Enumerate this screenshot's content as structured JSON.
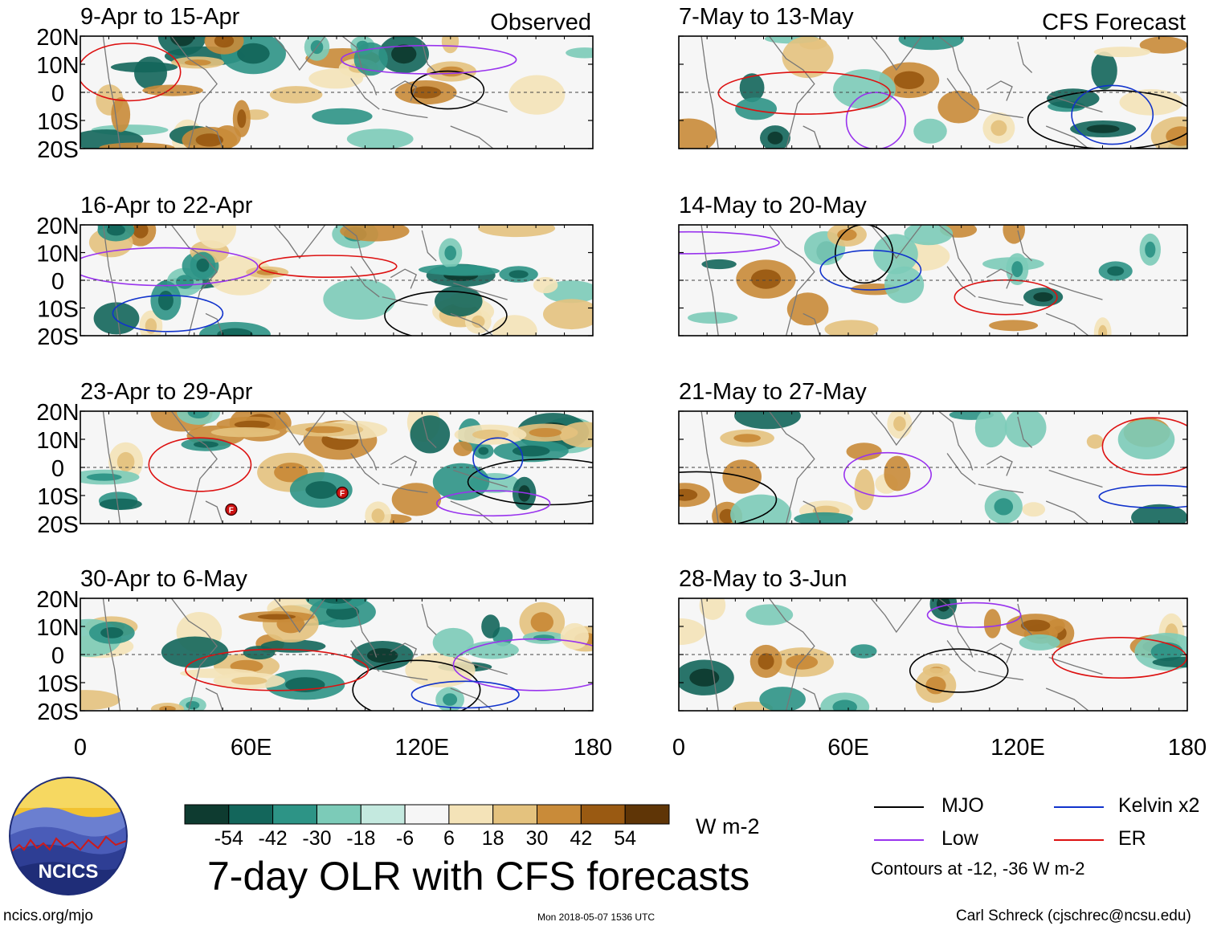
{
  "chart_data": {
    "type": "heatmap",
    "title": "7-day OLR with CFS forecasts",
    "units": "W m-2",
    "observed_label": "Observed",
    "forecast_label": "CFS Forecast",
    "lat_ticks": [
      "20N",
      "10N",
      "0",
      "10S",
      "20S"
    ],
    "lon_ticks": [
      "0",
      "60E",
      "120E",
      "180"
    ],
    "lat_range": [
      -20,
      20
    ],
    "lon_range": [
      0,
      180
    ],
    "observed_panels": [
      {
        "period": "9-Apr to 15-Apr"
      },
      {
        "period": "16-Apr to 22-Apr"
      },
      {
        "period": "23-Apr to 29-Apr"
      },
      {
        "period": "30-Apr to 6-May"
      }
    ],
    "forecast_panels": [
      {
        "period": "7-May to 13-May"
      },
      {
        "period": "14-May to 20-May"
      },
      {
        "period": "21-May to 27-May"
      },
      {
        "period": "28-May to 3-Jun"
      }
    ],
    "colorbar": {
      "labels": [
        "-54",
        "-42",
        "-30",
        "-18",
        "-6",
        "6",
        "18",
        "30",
        "42",
        "54"
      ],
      "colors": [
        "#0e3b30",
        "#13665b",
        "#2d9486",
        "#7ccbb8",
        "#c4e9df",
        "#f6f6f6",
        "#f4e3b8",
        "#e4c27e",
        "#c98b39",
        "#9a5a12",
        "#5f3506"
      ]
    },
    "legend": [
      {
        "name": "MJO",
        "color": "#000000"
      },
      {
        "name": "Kelvin x2",
        "color": "#1133cc"
      },
      {
        "name": "Low",
        "color": "#9933ee"
      },
      {
        "name": "ER",
        "color": "#dd1111"
      }
    ],
    "contour_note": "Contours at -12, -36 W m-2",
    "storm_markers": [
      {
        "label": "F",
        "lon": 53,
        "lat": -15
      },
      {
        "label": "F",
        "lon": 92,
        "lat": -9
      }
    ]
  },
  "footer": {
    "logo_text": "NCICS",
    "url": "ncics.org/mjo",
    "timestamp": "Mon 2018-05-07 1536 UTC",
    "credit": "Carl Schreck (cjschrec@ncsu.edu)"
  }
}
